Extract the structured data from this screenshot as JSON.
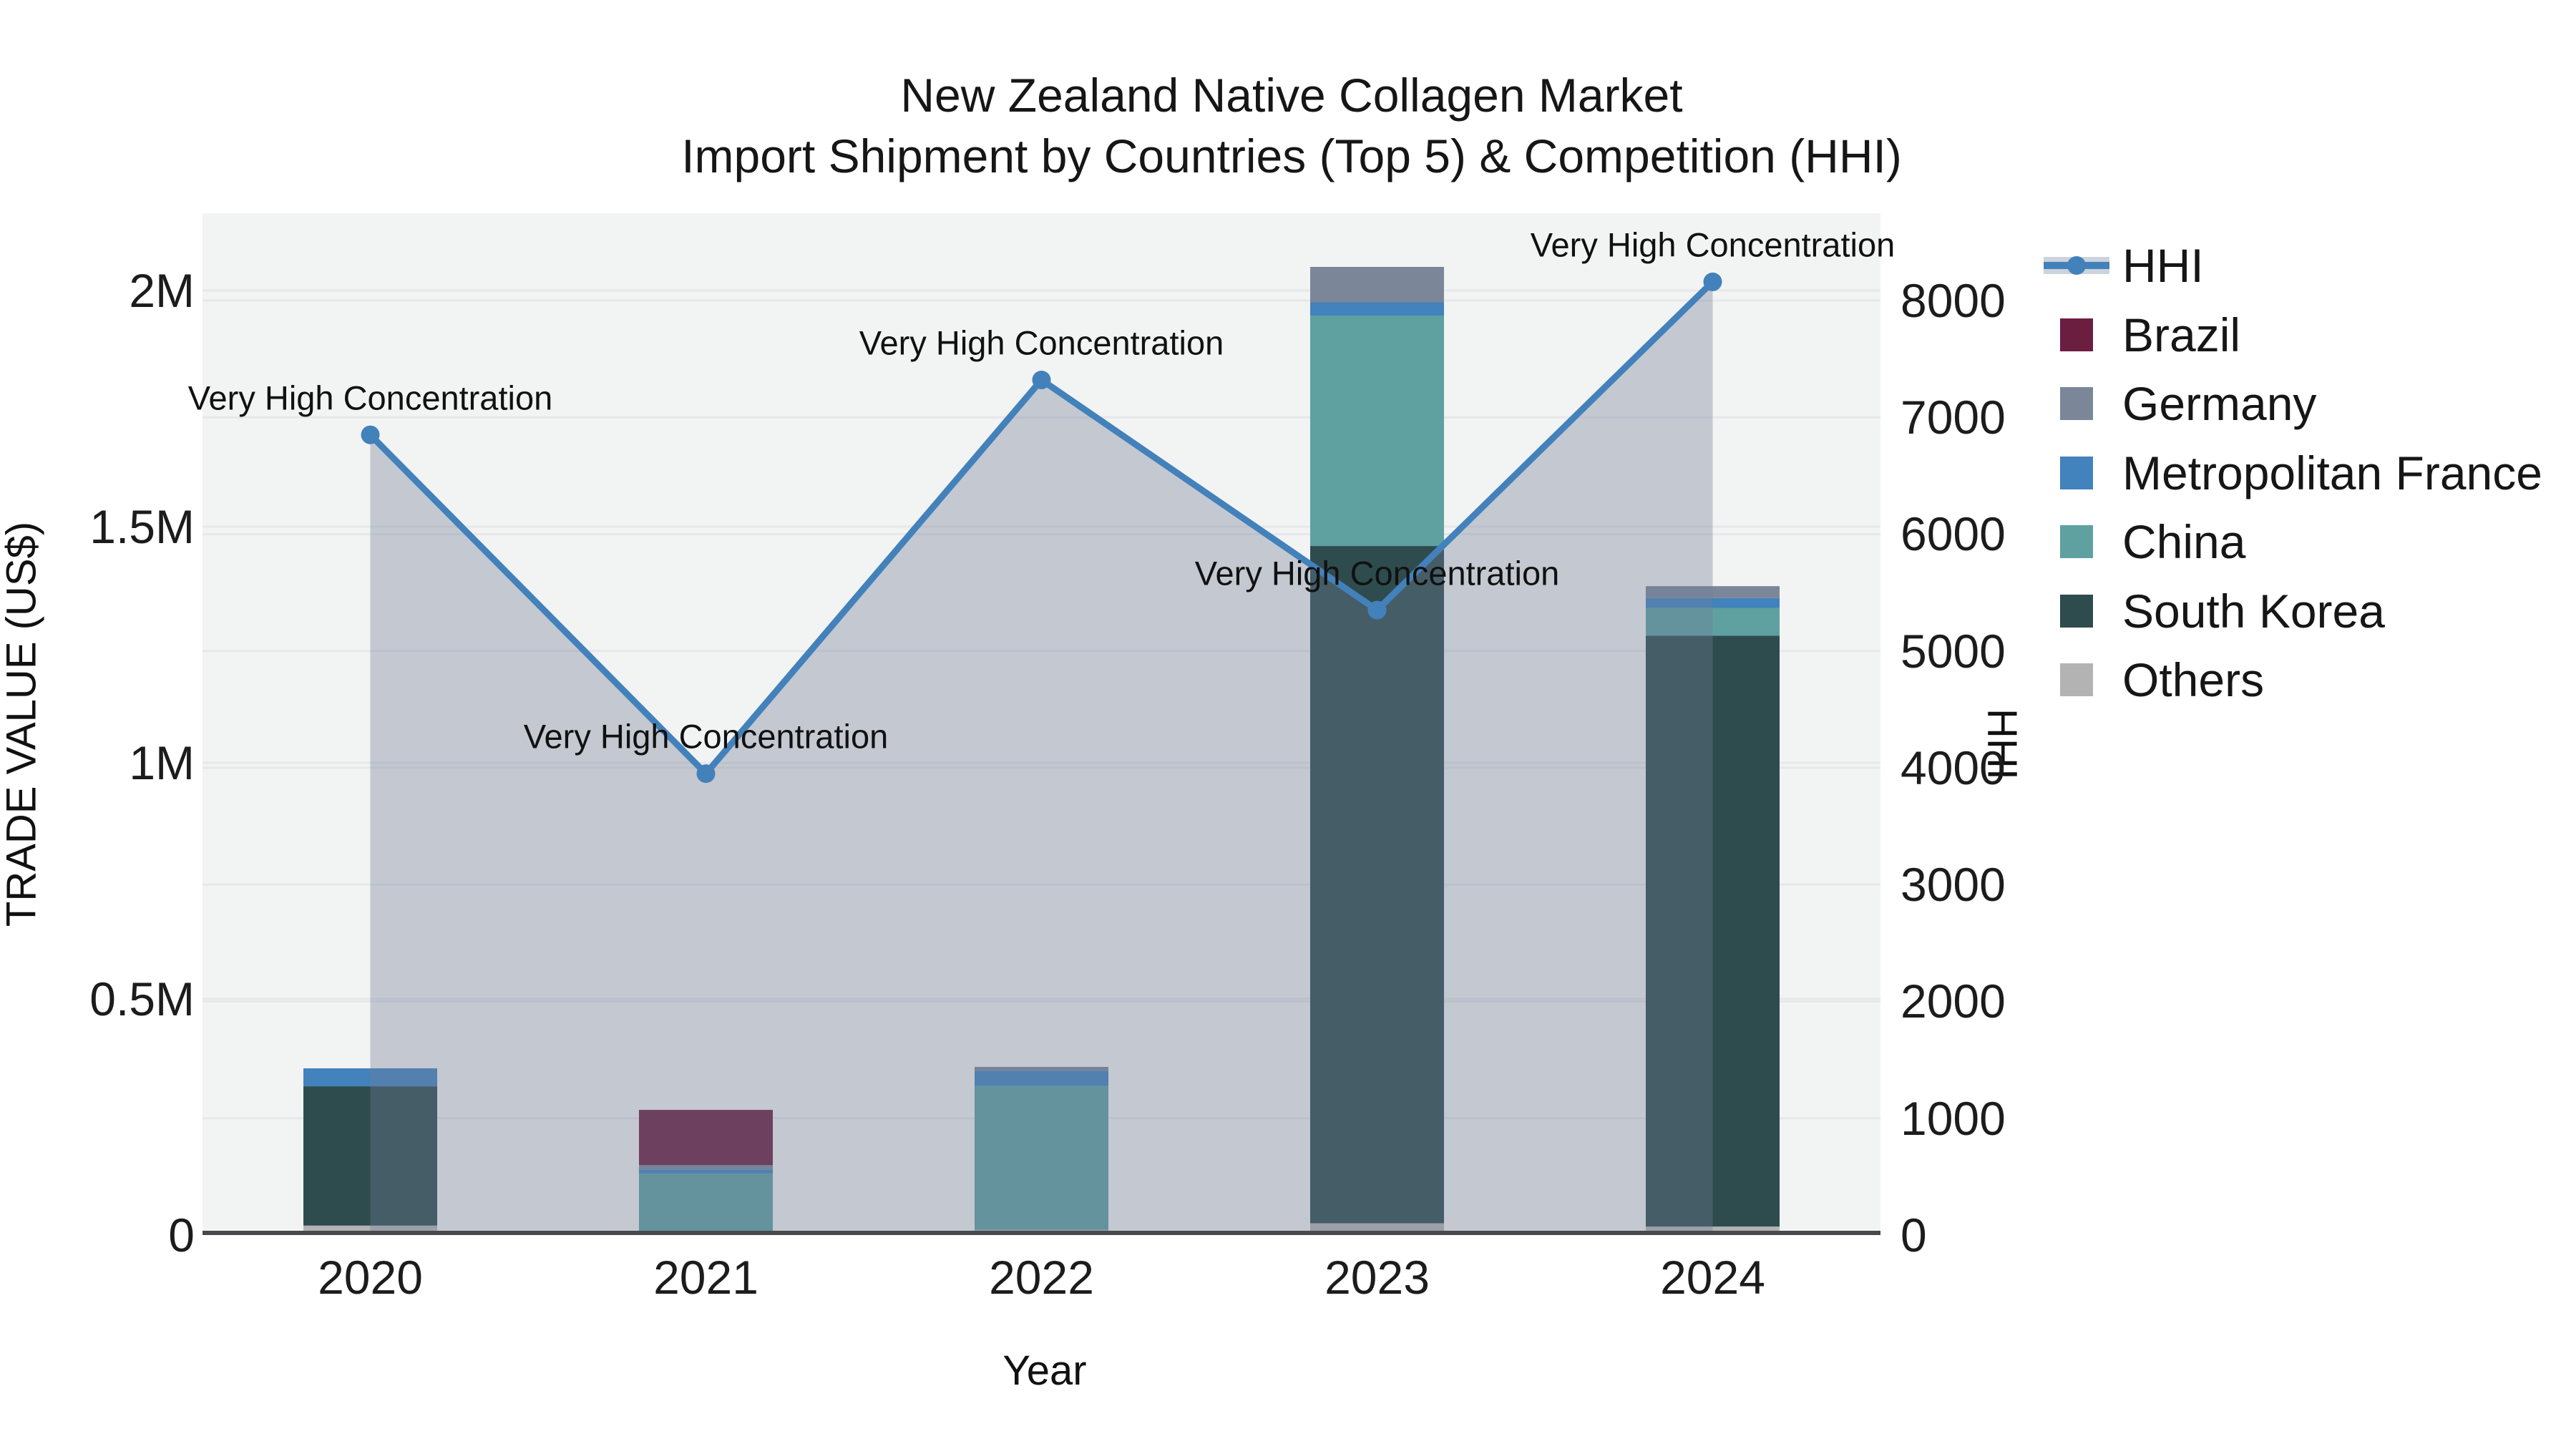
{
  "title": {
    "line1": "New Zealand Native Collagen Market",
    "line2": "Import Shipment by Countries (Top 5) & Competition (HHI)"
  },
  "axes": {
    "x": {
      "title": "Year",
      "categories": [
        "2020",
        "2021",
        "2022",
        "2023",
        "2024"
      ]
    },
    "left": {
      "title": "TRADE VALUE (US$)",
      "range": [
        0,
        2163636
      ],
      "ticks": [
        {
          "label": "0",
          "value": 0
        },
        {
          "label": "0.5M",
          "value": 500000
        },
        {
          "label": "1M",
          "value": 1000000
        },
        {
          "label": "1.5M",
          "value": 1500000
        },
        {
          "label": "2M",
          "value": 2000000
        }
      ]
    },
    "right": {
      "title": "HHI",
      "range": [
        0,
        8747
      ],
      "ticks": [
        {
          "label": "0",
          "value": 0
        },
        {
          "label": "1000",
          "value": 1000
        },
        {
          "label": "2000",
          "value": 2000
        },
        {
          "label": "3000",
          "value": 3000
        },
        {
          "label": "4000",
          "value": 4000
        },
        {
          "label": "5000",
          "value": 5000
        },
        {
          "label": "6000",
          "value": 6000
        },
        {
          "label": "7000",
          "value": 7000
        },
        {
          "label": "8000",
          "value": 8000
        }
      ]
    }
  },
  "legend": [
    {
      "label": "HHI",
      "type": "line"
    },
    {
      "label": "Brazil",
      "type": "square",
      "color": "#6c1e41"
    },
    {
      "label": "Germany",
      "type": "square",
      "color": "#7b8799"
    },
    {
      "label": "Metropolitan France",
      "type": "square",
      "color": "#4282bd"
    },
    {
      "label": "China",
      "type": "square",
      "color": "#5fa0a1"
    },
    {
      "label": "South Korea",
      "type": "square",
      "color": "#2e4c4e"
    },
    {
      "label": "Others",
      "type": "square",
      "color": "#b3b3b4"
    }
  ],
  "chart_data": {
    "type": "bar+line",
    "title": "New Zealand Native Collagen Market — Import Shipment by Countries (Top 5) & Competition (HHI)",
    "categories": [
      "2020",
      "2021",
      "2022",
      "2023",
      "2024"
    ],
    "bar_unit": "US$ trade value",
    "bar_stack_order_bottom_to_top": [
      "Others",
      "South Korea",
      "China",
      "Metropolitan France",
      "Germany",
      "Brazil"
    ],
    "series": [
      {
        "name": "Others",
        "color": "#b3b3b4",
        "values": [
          20000,
          5000,
          11000,
          25000,
          18000
        ]
      },
      {
        "name": "South Korea",
        "color": "#2e4c4e",
        "values": [
          295000,
          0,
          0,
          1434000,
          1251000
        ]
      },
      {
        "name": "China",
        "color": "#5fa0a1",
        "values": [
          0,
          125000,
          305000,
          488000,
          59000
        ]
      },
      {
        "name": "Metropolitan France",
        "color": "#4282bd",
        "values": [
          38000,
          9000,
          32000,
          28000,
          21000
        ]
      },
      {
        "name": "Germany",
        "color": "#7b8799",
        "values": [
          0,
          9000,
          8000,
          75000,
          25000
        ]
      },
      {
        "name": "Brazil",
        "color": "#6c1e41",
        "values": [
          0,
          117000,
          0,
          0,
          0
        ]
      }
    ],
    "line_series": {
      "name": "HHI",
      "axis": "right",
      "color": "#4381bb",
      "fill": "rgba(110,126,151,0.36)",
      "values": [
        6850,
        3950,
        7320,
        5350,
        8160
      ]
    },
    "annotations": [
      "Very High Concentration",
      "Very High Concentration",
      "Very High Concentration",
      "Very High Concentration",
      "Very High Concentration"
    ],
    "ylim_left": [
      0,
      2163636
    ],
    "ylim_right": [
      0,
      8747
    ],
    "legend_position": "right",
    "grid": "horizontal"
  },
  "colors": {
    "figure_bg": "#ffffff",
    "plot_bg": "#f2f3f3",
    "grid": "#e7e8e9",
    "axis_line": "#47494b",
    "text": "#1c1c1c",
    "hhi_line": "#4381bb",
    "hhi_fill": "rgba(110,126,151,0.36)",
    "hhi_band": "#ccd3dc"
  }
}
